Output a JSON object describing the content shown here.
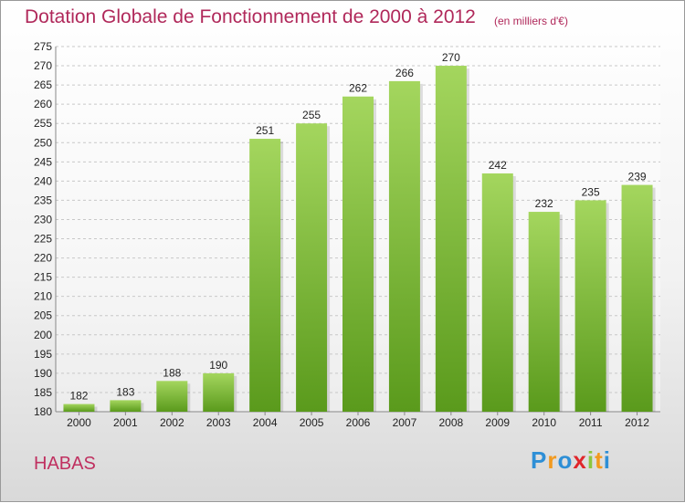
{
  "title": "Dotation Globale de Fonctionnement de 2000 à 2012",
  "subtitle": "(en milliers d'€)",
  "commune": "HABAS",
  "logo": {
    "chars": [
      "P",
      "r",
      "o",
      "x",
      "i",
      "t",
      "i"
    ],
    "colors": [
      "#2e8fd6",
      "#f29a1f",
      "#2e8fd6",
      "#e0262b",
      "#8cc63f",
      "#f29a1f",
      "#2e8fd6"
    ]
  },
  "colors": {
    "bar": "#7fbf3a",
    "bar_light": "#a4d65e",
    "bar_dark": "#5a9a1c",
    "title": "#b0285a"
  },
  "chart_data": {
    "type": "bar",
    "categories": [
      "2000",
      "2001",
      "2002",
      "2003",
      "2004",
      "2005",
      "2006",
      "2007",
      "2008",
      "2009",
      "2010",
      "2011",
      "2012"
    ],
    "values": [
      182,
      183,
      188,
      190,
      251,
      255,
      262,
      266,
      270,
      242,
      232,
      235,
      239
    ],
    "ylim": [
      180,
      275
    ],
    "yticks": [
      180,
      185,
      190,
      195,
      200,
      205,
      210,
      215,
      220,
      225,
      230,
      235,
      240,
      245,
      250,
      255,
      260,
      265,
      270,
      275
    ],
    "xlabel": "",
    "ylabel": "",
    "grid": true,
    "legend": "none"
  }
}
